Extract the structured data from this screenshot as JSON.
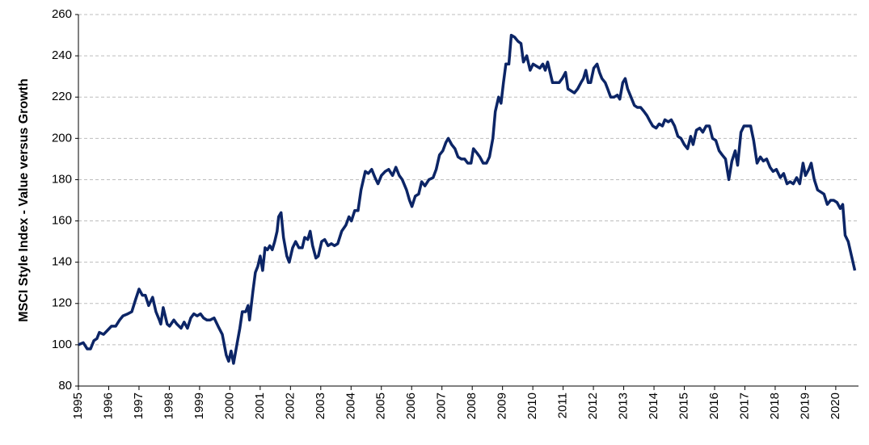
{
  "chart_data": {
    "type": "line",
    "y_label": "MSCI Style Index - Value versus Growth",
    "xlim": [
      1995,
      2020.75
    ],
    "ylim": [
      80,
      260
    ],
    "xticks": [
      1995,
      1996,
      1997,
      1998,
      1999,
      2000,
      2001,
      2002,
      2003,
      2004,
      2005,
      2006,
      2007,
      2008,
      2009,
      2010,
      2011,
      2012,
      2013,
      2014,
      2015,
      2016,
      2017,
      2018,
      2019,
      2020
    ],
    "yticks": [
      80,
      100,
      120,
      140,
      160,
      180,
      200,
      220,
      240,
      260
    ],
    "grid": true,
    "x": [
      1995.0,
      1995.16,
      1995.29,
      1995.4,
      1995.51,
      1995.61,
      1995.69,
      1995.83,
      1995.96,
      1996.09,
      1996.23,
      1996.36,
      1996.47,
      1996.63,
      1996.76,
      1996.89,
      1997.0,
      1997.11,
      1997.21,
      1997.32,
      1997.45,
      1997.56,
      1997.67,
      1997.72,
      1997.8,
      1997.93,
      1998.01,
      1998.15,
      1998.25,
      1998.39,
      1998.49,
      1998.6,
      1998.71,
      1998.81,
      1998.92,
      1999.03,
      1999.13,
      1999.24,
      1999.35,
      1999.48,
      1999.61,
      1999.75,
      1999.88,
      1999.96,
      2000.04,
      2000.12,
      2000.23,
      2000.33,
      2000.41,
      2000.52,
      2000.6,
      2000.65,
      2000.76,
      2000.84,
      2000.92,
      2001.0,
      2001.08,
      2001.16,
      2001.24,
      2001.32,
      2001.4,
      2001.48,
      2001.56,
      2001.61,
      2001.69,
      2001.77,
      2001.88,
      2001.96,
      2002.07,
      2002.17,
      2002.28,
      2002.39,
      2002.47,
      2002.57,
      2002.65,
      2002.73,
      2002.84,
      2002.92,
      2003.03,
      2003.13,
      2003.24,
      2003.35,
      2003.45,
      2003.56,
      2003.69,
      2003.83,
      2003.93,
      2004.01,
      2004.12,
      2004.23,
      2004.33,
      2004.47,
      2004.57,
      2004.68,
      2004.79,
      2004.89,
      2005.0,
      2005.13,
      2005.24,
      2005.37,
      2005.48,
      2005.59,
      2005.69,
      2005.83,
      2005.93,
      2006.01,
      2006.12,
      2006.23,
      2006.33,
      2006.44,
      2006.57,
      2006.71,
      2006.81,
      2006.92,
      2007.03,
      2007.13,
      2007.21,
      2007.32,
      2007.43,
      2007.53,
      2007.64,
      2007.75,
      2007.85,
      2007.96,
      2008.04,
      2008.15,
      2008.25,
      2008.36,
      2008.47,
      2008.57,
      2008.68,
      2008.76,
      2008.87,
      2008.95,
      2009.03,
      2009.11,
      2009.21,
      2009.29,
      2009.4,
      2009.51,
      2009.61,
      2009.69,
      2009.8,
      2009.91,
      2010.01,
      2010.12,
      2010.23,
      2010.33,
      2010.41,
      2010.49,
      2010.57,
      2010.65,
      2010.76,
      2010.87,
      2010.97,
      2011.08,
      2011.16,
      2011.27,
      2011.37,
      2011.48,
      2011.59,
      2011.67,
      2011.75,
      2011.83,
      2011.91,
      2012.01,
      2012.12,
      2012.2,
      2012.28,
      2012.39,
      2012.47,
      2012.57,
      2012.68,
      2012.79,
      2012.87,
      2012.97,
      2013.05,
      2013.13,
      2013.24,
      2013.35,
      2013.45,
      2013.56,
      2013.67,
      2013.77,
      2013.88,
      2013.96,
      2014.07,
      2014.17,
      2014.28,
      2014.36,
      2014.47,
      2014.57,
      2014.68,
      2014.79,
      2014.89,
      2015.0,
      2015.11,
      2015.21,
      2015.29,
      2015.4,
      2015.51,
      2015.61,
      2015.72,
      2015.83,
      2015.93,
      2016.04,
      2016.15,
      2016.25,
      2016.36,
      2016.47,
      2016.57,
      2016.68,
      2016.76,
      2016.87,
      2016.97,
      2017.08,
      2017.19,
      2017.29,
      2017.4,
      2017.51,
      2017.61,
      2017.72,
      2017.83,
      2017.93,
      2018.04,
      2018.17,
      2018.28,
      2018.39,
      2018.49,
      2018.6,
      2018.71,
      2018.81,
      2018.92,
      2019.0,
      2019.11,
      2019.19,
      2019.29,
      2019.4,
      2019.51,
      2019.61,
      2019.72,
      2019.83,
      2019.93,
      2020.04,
      2020.15,
      2020.23,
      2020.31,
      2020.41,
      2020.52,
      2020.63
    ],
    "series": [
      {
        "name": "MSCI Style Index - Value versus Growth",
        "color": "#0c2566",
        "values": [
          100,
          101,
          98,
          98,
          102,
          103,
          106,
          105,
          107,
          109,
          109,
          112,
          114,
          115,
          116,
          122,
          127,
          124,
          124,
          119,
          123,
          116,
          112,
          110,
          118,
          110,
          109,
          112,
          110,
          108,
          111,
          108,
          113,
          115,
          114,
          115,
          113,
          112,
          112,
          113,
          109,
          105,
          95,
          92,
          97,
          91,
          100,
          108,
          116,
          116,
          119,
          112,
          126,
          135,
          138,
          143,
          136,
          147,
          146,
          148,
          146,
          150,
          155,
          162,
          164,
          152,
          143,
          140,
          147,
          150,
          147,
          147,
          152,
          151,
          155,
          148,
          142,
          143,
          150,
          151,
          148,
          149,
          148,
          149,
          155,
          158,
          162,
          160,
          165,
          165,
          175,
          184,
          183,
          185,
          181,
          178,
          182,
          184,
          185,
          182,
          186,
          182,
          180,
          175,
          170,
          167,
          172,
          173,
          179,
          177,
          180,
          181,
          185,
          192,
          194,
          198,
          200,
          197,
          195,
          191,
          190,
          190,
          188,
          188,
          195,
          193,
          191,
          188,
          188,
          191,
          200,
          213,
          220,
          217,
          227,
          236,
          236,
          250,
          249,
          247,
          246,
          237,
          240,
          233,
          236,
          235,
          234,
          236,
          233,
          237,
          232,
          227,
          227,
          227,
          229,
          232,
          224,
          223,
          222,
          224,
          227,
          229,
          233,
          227,
          227,
          234,
          236,
          232,
          229,
          227,
          224,
          220,
          220,
          221,
          219,
          227,
          229,
          224,
          220,
          216,
          215,
          215,
          213,
          211,
          208,
          206,
          205,
          207,
          206,
          209,
          208,
          209,
          206,
          201,
          200,
          197,
          195,
          201,
          197,
          204,
          205,
          203,
          206,
          206,
          200,
          199,
          194,
          192,
          190,
          180,
          189,
          194,
          187,
          203,
          206,
          206,
          206,
          199,
          188,
          191,
          189,
          190,
          186,
          184,
          185,
          181,
          183,
          178,
          179,
          178,
          181,
          178,
          188,
          182,
          185,
          188,
          180,
          175,
          174,
          173,
          168,
          170,
          170,
          169,
          166,
          168,
          153,
          150,
          143,
          136
        ]
      }
    ]
  }
}
